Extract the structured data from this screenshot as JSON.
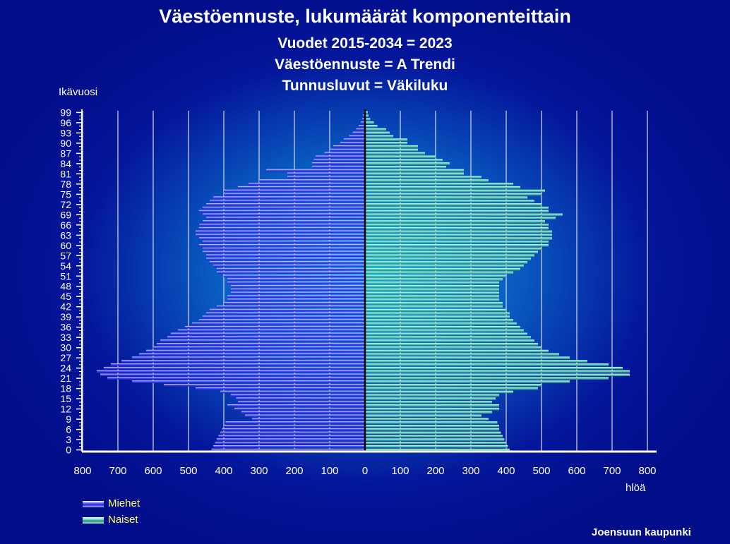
{
  "chart_data": {
    "type": "bar",
    "title": "Väestöennuste, lukumäärät komponenteittain",
    "subtitles": [
      "Vuodet 2015-2034 = 2023",
      "Väestöennuste = A Trendi",
      "Tunnusluvut = Väkiluku"
    ],
    "ylabel": "Ikävuosi",
    "xlabel": "hlöä",
    "xlim": [
      -800,
      800
    ],
    "x_tick_labels": [
      "800",
      "700",
      "600",
      "500",
      "400",
      "300",
      "200",
      "100",
      "0",
      "100",
      "200",
      "300",
      "400",
      "500",
      "600",
      "700",
      "800"
    ],
    "age_tick_labels": [
      "0",
      "3",
      "6",
      "9",
      "12",
      "15",
      "18",
      "21",
      "24",
      "27",
      "30",
      "33",
      "36",
      "39",
      "42",
      "45",
      "48",
      "51",
      "54",
      "57",
      "60",
      "63",
      "66",
      "69",
      "72",
      "75",
      "78",
      "81",
      "84",
      "87",
      "90",
      "93",
      "96",
      "99"
    ],
    "grid": "vertical",
    "legend_position": "bottom-left",
    "series": [
      {
        "name": "Miehet",
        "color": "#4040ff",
        "values": [
          435,
          430,
          425,
          420,
          415,
          410,
          405,
          400,
          395,
          320,
          340,
          350,
          370,
          390,
          360,
          365,
          380,
          410,
          480,
          570,
          660,
          730,
          750,
          760,
          740,
          720,
          690,
          660,
          640,
          620,
          600,
          590,
          580,
          560,
          550,
          530,
          510,
          490,
          470,
          460,
          450,
          440,
          420,
          400,
          390,
          390,
          380,
          380,
          380,
          390,
          390,
          400,
          420,
          420,
          430,
          440,
          450,
          450,
          460,
          460,
          470,
          460,
          470,
          480,
          480,
          470,
          470,
          460,
          450,
          460,
          470,
          460,
          450,
          440,
          430,
          400,
          400,
          360,
          330,
          300,
          220,
          220,
          280,
          150,
          150,
          145,
          140,
          115,
          100,
          90,
          70,
          60,
          45,
          35,
          25,
          18,
          12,
          8,
          6,
          4
        ]
      },
      {
        "name": "Naiset",
        "color": "#5fd6b8",
        "values": [
          410,
          405,
          400,
          395,
          390,
          385,
          380,
          380,
          375,
          350,
          330,
          360,
          380,
          380,
          360,
          370,
          380,
          420,
          490,
          500,
          580,
          690,
          750,
          750,
          730,
          690,
          630,
          580,
          550,
          520,
          500,
          490,
          480,
          470,
          460,
          450,
          440,
          430,
          420,
          410,
          410,
          400,
          390,
          390,
          380,
          380,
          380,
          380,
          380,
          380,
          390,
          400,
          420,
          440,
          450,
          460,
          470,
          480,
          490,
          500,
          520,
          520,
          530,
          530,
          530,
          520,
          520,
          510,
          540,
          560,
          520,
          520,
          500,
          480,
          460,
          500,
          510,
          440,
          420,
          350,
          330,
          280,
          280,
          230,
          240,
          220,
          200,
          170,
          150,
          150,
          120,
          120,
          80,
          70,
          60,
          35,
          25,
          15,
          10,
          8
        ]
      }
    ]
  },
  "footer": {
    "credit": "Joensuun kaupunki"
  }
}
